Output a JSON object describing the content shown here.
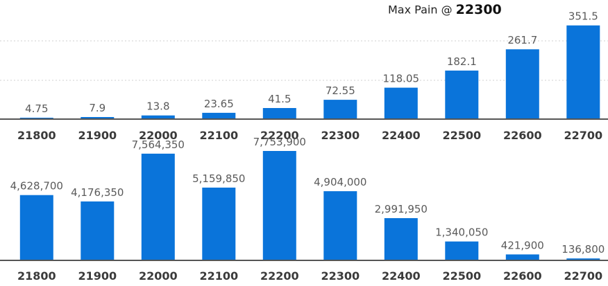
{
  "header": {
    "prefix": "Max Pain @ ",
    "strike": "22300"
  },
  "chart_data": [
    {
      "type": "bar",
      "categories": [
        "21800",
        "21900",
        "22000",
        "22100",
        "22200",
        "22300",
        "22400",
        "22500",
        "22600",
        "22700"
      ],
      "values": [
        4.75,
        7.9,
        13.8,
        23.65,
        41.5,
        72.55,
        118.05,
        182.1,
        261.7,
        351.5
      ],
      "value_labels": [
        "4.75",
        "7.9",
        "13.8",
        "23.65",
        "41.5",
        "72.55",
        "118.05",
        "182.1",
        "261.7",
        "351.5"
      ],
      "ylim": [
        0,
        400
      ],
      "grid": true,
      "color": "#0a74da"
    },
    {
      "type": "bar",
      "categories": [
        "21800",
        "21900",
        "22000",
        "22100",
        "22200",
        "22300",
        "22400",
        "22500",
        "22600",
        "22700"
      ],
      "values": [
        4628700,
        4176350,
        7564350,
        5159850,
        7753900,
        4904000,
        2991950,
        1340050,
        421900,
        136800
      ],
      "value_labels": [
        "4,628,700",
        "4,176,350",
        "7,564,350",
        "5,159,850",
        "7,753,900",
        "4,904,000",
        "2,991,950",
        "1,340,050",
        "421,900",
        "136,800"
      ],
      "ylim": [
        0,
        8000000
      ],
      "grid": false,
      "color": "#0a74da"
    }
  ]
}
